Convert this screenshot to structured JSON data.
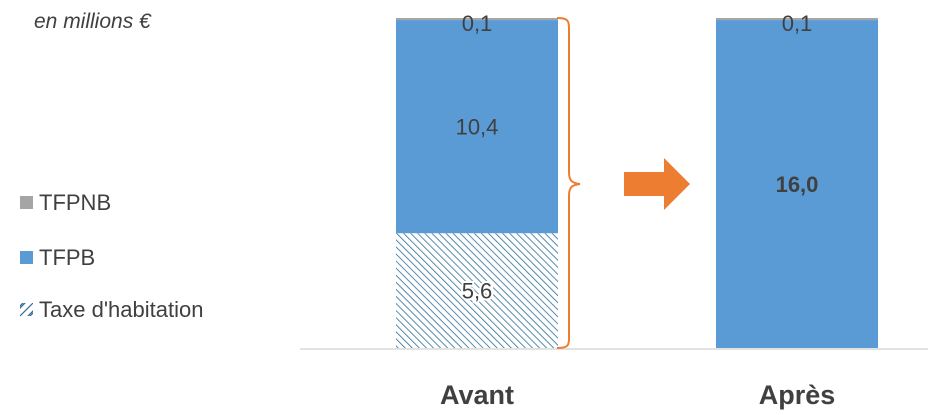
{
  "chart_data": {
    "type": "bar",
    "stacked": true,
    "unit_label": "en millions €",
    "categories": [
      "Avant",
      "Après"
    ],
    "series": [
      {
        "name": "Taxe d'habitation",
        "values": [
          5.6,
          null
        ],
        "labels": [
          "5,6",
          ""
        ],
        "pattern": "hatched",
        "color": "#2E6E96"
      },
      {
        "name": "TFPB",
        "values": [
          10.4,
          16.0
        ],
        "labels": [
          "10,4",
          "16,0"
        ],
        "color": "#5B9BD5"
      },
      {
        "name": "TFPNB",
        "values": [
          0.1,
          0.1
        ],
        "labels": [
          "0,1",
          "0,1"
        ],
        "color": "#A5A5A5"
      }
    ],
    "ylim": [
      0,
      16.1
    ],
    "grid": false,
    "legend_position": "left",
    "annotations": [
      {
        "type": "brace",
        "target": "Avant",
        "color": "#ED7D31"
      },
      {
        "type": "arrow",
        "from": "Avant",
        "to": "Après",
        "color": "#ED7D31"
      }
    ]
  }
}
